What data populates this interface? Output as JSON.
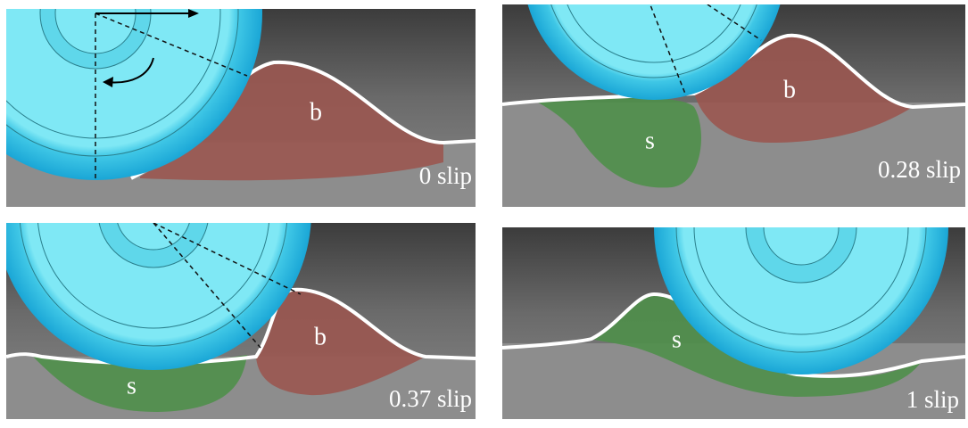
{
  "panels": [
    {
      "regions": [
        "b"
      ],
      "slip_label": "0 slip"
    },
    {
      "regions": [
        "s",
        "b"
      ],
      "slip_label": "0.28 slip"
    },
    {
      "regions": [
        "s",
        "b"
      ],
      "slip_label": "0.37 slip"
    },
    {
      "regions": [
        "s"
      ],
      "slip_label": "1 slip"
    }
  ]
}
